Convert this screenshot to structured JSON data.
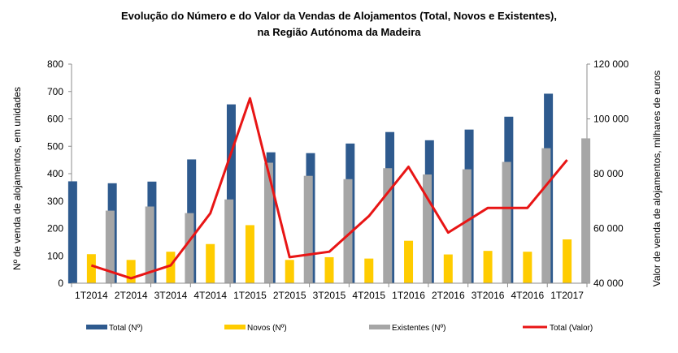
{
  "chart_data": {
    "type": "bar",
    "title_line1": "Evolução do Número e do Valor da Vendas de Alojamentos (Total, Novos e Existentes),",
    "title_line2": "na Região Autónoma da Madeira",
    "ylabel_left": "Nº de venda de alojamentos, em unidades",
    "ylabel_right": "Valor de venda de alojamentos, milhares de euros",
    "categories": [
      "1T2014",
      "2T2014",
      "3T2014",
      "4T2014",
      "1T2015",
      "2T2015",
      "3T2015",
      "4T2015",
      "1T2016",
      "2T2016",
      "3T2016",
      "4T2016",
      "1T2017"
    ],
    "ylim_left": [
      0,
      800
    ],
    "yticks_left": [
      0,
      100,
      200,
      300,
      400,
      500,
      600,
      700,
      800
    ],
    "ytick_labels_left": [
      "0",
      "100",
      "200",
      "300",
      "400",
      "500",
      "600",
      "700",
      "800"
    ],
    "ylim_right": [
      40000,
      120000
    ],
    "yticks_right": [
      40000,
      60000,
      80000,
      100000,
      120000
    ],
    "ytick_labels_right": [
      "40 000",
      "60 000",
      "80 000",
      "100 000",
      "120 000"
    ],
    "grid": false,
    "legend_position": "bottom",
    "series": [
      {
        "name": "Total (Nº)",
        "type": "bar",
        "axis": "left",
        "color": "#2E5A8E",
        "values": [
          372,
          365,
          371,
          452,
          653,
          478,
          475,
          510,
          552,
          522,
          561,
          608,
          692
        ]
      },
      {
        "name": "Novos (Nº)",
        "type": "bar",
        "axis": "left",
        "color": "#FFCC00",
        "values": [
          106,
          85,
          115,
          143,
          212,
          85,
          95,
          90,
          155,
          105,
          118,
          115,
          160
        ]
      },
      {
        "name": "Existentes (Nº)",
        "type": "bar",
        "axis": "left",
        "color": "#A6A6A6",
        "values": [
          265,
          280,
          256,
          306,
          440,
          392,
          380,
          420,
          397,
          416,
          443,
          493,
          529
        ]
      },
      {
        "name": "Total (Valor)",
        "type": "line",
        "axis": "right",
        "color": "#E81515",
        "values": [
          46500,
          41800,
          46500,
          65500,
          107500,
          49500,
          51500,
          64500,
          82500,
          58500,
          67500,
          67500,
          85000
        ]
      }
    ]
  }
}
